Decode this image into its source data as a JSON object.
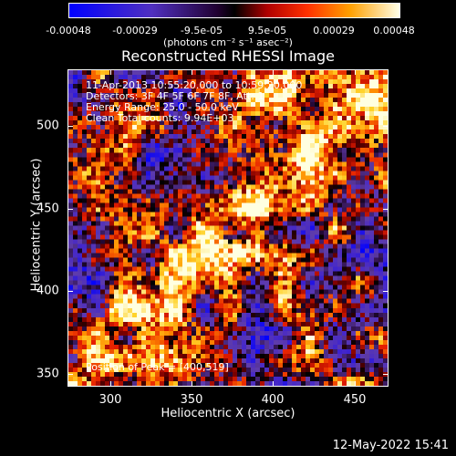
{
  "colorbar": {
    "ticks": [
      "-0.00048",
      "-0.00029",
      "-9.5e-05",
      "9.5e-05",
      "0.00029",
      "0.00048"
    ],
    "unit": "(photons cm⁻² s⁻¹ asec⁻²)"
  },
  "chart_data": {
    "type": "heatmap",
    "title": "Reconstructed RHESSI Image",
    "xlabel": "Heliocentric X (arcsec)",
    "ylabel": "Heliocentric Y (arcsec)",
    "xlim": [
      275,
      470
    ],
    "ylim": [
      343,
      535
    ],
    "x_ticks": [
      "300",
      "350",
      "400",
      "450"
    ],
    "y_ticks": [
      "500",
      "450",
      "400",
      "350"
    ],
    "colorbar_range": [
      -0.00048,
      0.00048
    ],
    "colormap": [
      "#0000ff",
      "#4020c0",
      "#6a3ab0",
      "#000000",
      "#800000",
      "#ff2000",
      "#ff8000",
      "#ffd000",
      "#ffffe0"
    ],
    "peak": [
      400,
      519
    ],
    "annotations": [
      "11-Apr-2013 10:55:20.000 to 10:59:20.000",
      "Detectors: 3F 4F 5F 6F 7F 8F, Att: 1",
      "Energy Range: 25.0 - 50.0 keV",
      "Clean     Total counts: 9.94E+03"
    ],
    "peak_text": "Position of Peak = [400,519]"
  },
  "footer": {
    "timestamp": "12-May-2022 15:41"
  }
}
